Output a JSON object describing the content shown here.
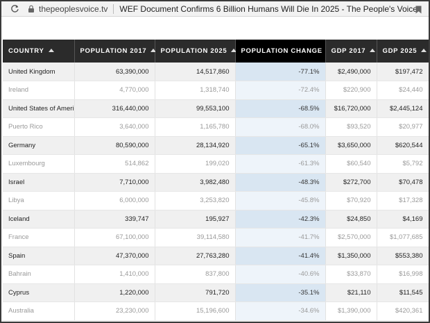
{
  "browser": {
    "url": "thepeoplesvoice.tv",
    "title": "WEF Document Confirms 6 Billion Humans Will Die In 2025 - The People's Voice"
  },
  "table": {
    "headers": [
      "COUNTRY",
      "POPULATION 2017",
      "POPULATION 2025",
      "POPULATION CHANGE",
      "GDP 2017",
      "GDP 2025"
    ],
    "active_sort_column": "POPULATION CHANGE",
    "rows": [
      [
        "United Kingdom",
        "63,390,000",
        "14,517,860",
        "-77.1%",
        "$2,490,000",
        "$197,472"
      ],
      [
        "Ireland",
        "4,770,000",
        "1,318,740",
        "-72.4%",
        "$220,900",
        "$24,440"
      ],
      [
        "United States of America",
        "316,440,000",
        "99,553,100",
        "-68.5%",
        "$16,720,000",
        "$2,445,124"
      ],
      [
        "Puerto Rico",
        "3,640,000",
        "1,165,780",
        "-68.0%",
        "$93,520",
        "$20,977"
      ],
      [
        "Germany",
        "80,590,000",
        "28,134,920",
        "-65.1%",
        "$3,650,000",
        "$620,544"
      ],
      [
        "Luxembourg",
        "514,862",
        "199,020",
        "-61.3%",
        "$60,540",
        "$5,792"
      ],
      [
        "Israel",
        "7,710,000",
        "3,982,480",
        "-48.3%",
        "$272,700",
        "$70,478"
      ],
      [
        "Libya",
        "6,000,000",
        "3,253,820",
        "-45.8%",
        "$70,920",
        "$17,328"
      ],
      [
        "Iceland",
        "339,747",
        "195,927",
        "-42.3%",
        "$24,850",
        "$4,169"
      ],
      [
        "France",
        "67,100,000",
        "39,114,580",
        "-41.7%",
        "$2,570,000",
        "$1,077,685"
      ],
      [
        "Spain",
        "47,370,000",
        "27,763,280",
        "-41.4%",
        "$1,350,000",
        "$553,380"
      ],
      [
        "Bahrain",
        "1,410,000",
        "837,800",
        "-40.6%",
        "$33,870",
        "$16,998"
      ],
      [
        "Cyprus",
        "1,220,000",
        "791,720",
        "-35.1%",
        "$21,110",
        "$11,545"
      ],
      [
        "Australia",
        "23,230,000",
        "15,196,600",
        "-34.6%",
        "$1,390,000",
        "$420,361"
      ]
    ]
  },
  "colors": {
    "header_bg": "#2b2b2b",
    "active_header_bg": "#000000",
    "highlight_column": "#d9e6f2"
  }
}
